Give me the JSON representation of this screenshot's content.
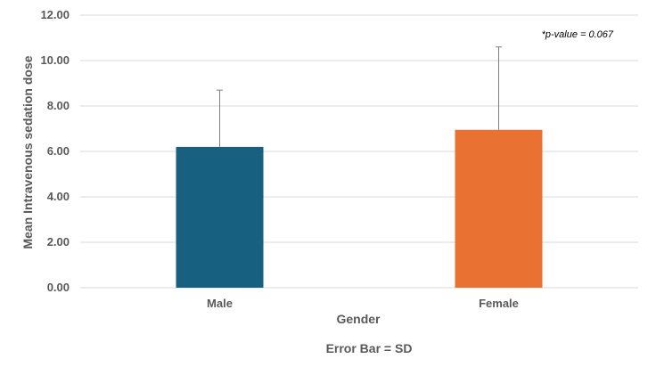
{
  "chart_data": {
    "type": "bar",
    "categories": [
      "Male",
      "Female"
    ],
    "values": [
      6.2,
      6.95
    ],
    "error_sd": [
      2.5,
      3.65
    ],
    "colors": [
      "#17607f",
      "#e97132"
    ],
    "xlabel": "Gender",
    "ylabel": "Mean Intravenous sedation dose",
    "ylim": [
      0,
      12
    ],
    "yticks": [
      "0.00",
      "2.00",
      "4.00",
      "6.00",
      "8.00",
      "10.00",
      "12.00"
    ],
    "annotation": "*p-value = 0.067",
    "footnote": "Error Bar = SD",
    "grid": true,
    "legend": "none"
  }
}
